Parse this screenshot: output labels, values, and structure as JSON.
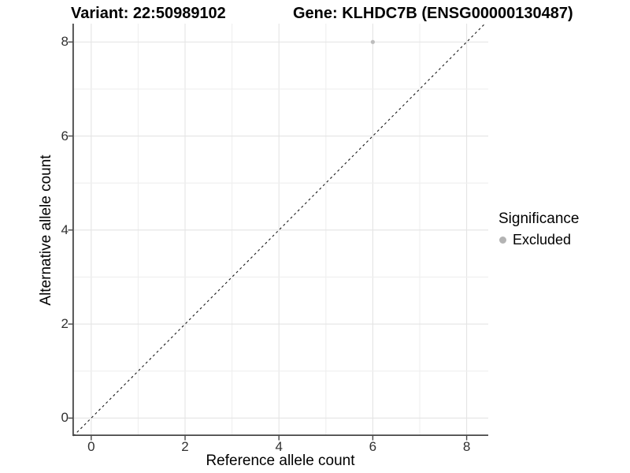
{
  "figure": {
    "title_variant": "Variant: 22:50989102",
    "title_gene": "Gene: KLHDC7B (ENSG00000130487)"
  },
  "chart_data": {
    "type": "scatter",
    "xlabel": "Reference allele count",
    "ylabel": "Alternative allele count",
    "xlim": [
      -0.4,
      8.46
    ],
    "ylim": [
      -0.38,
      8.39
    ],
    "x_ticks": [
      0,
      2,
      4,
      6,
      8
    ],
    "y_ticks": [
      0,
      2,
      4,
      6,
      8
    ],
    "grid_interval": 1,
    "grid_on": true,
    "points": [
      {
        "x": 6,
        "y": 8,
        "significance": "Excluded"
      }
    ],
    "identity_line": {
      "slope": 1,
      "intercept": 0,
      "style": "dashed"
    },
    "legend": {
      "title": "Significance",
      "position": "right",
      "items": [
        {
          "label": "Excluded",
          "color": "#b3b3b3"
        }
      ]
    },
    "point_color": "#bdbdbd"
  },
  "colors": {
    "background": "#ffffff",
    "grid_major": "#e4e4e4",
    "grid_minor": "#efefef",
    "axis_line": "#474747",
    "tick_mark": "#474747",
    "tick_text": "#303030",
    "identity_line": "#1a1a1a"
  }
}
